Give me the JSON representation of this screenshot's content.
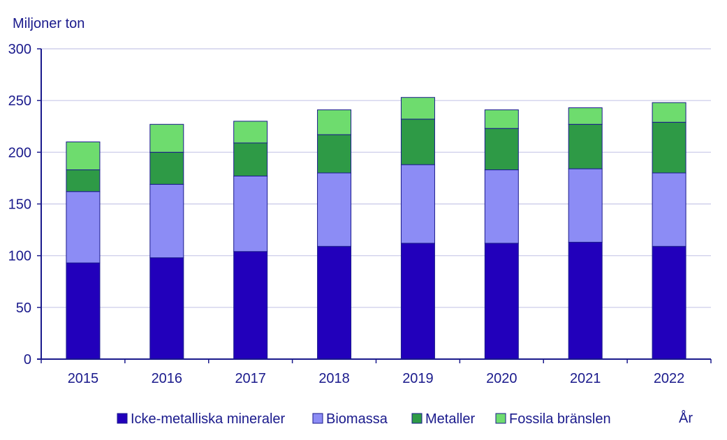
{
  "chart_data": {
    "type": "bar",
    "stacked": true,
    "title": "",
    "ylabel": "Miljoner ton",
    "xlabel": "År",
    "ylim": [
      0,
      300
    ],
    "yticks": [
      0,
      50,
      100,
      150,
      200,
      250,
      300
    ],
    "grid": true,
    "legend_position": "bottom",
    "categories": [
      "2015",
      "2016",
      "2017",
      "2018",
      "2019",
      "2020",
      "2021",
      "2022"
    ],
    "series": [
      {
        "name": "Icke-metalliska mineraler",
        "color": "#2200bb",
        "values": [
          93,
          98,
          104,
          109,
          112,
          112,
          113,
          109
        ]
      },
      {
        "name": "Biomassa",
        "color": "#8c8cf5",
        "values": [
          69,
          71,
          73,
          71,
          76,
          71,
          71,
          71
        ]
      },
      {
        "name": "Metaller",
        "color": "#2e9a46",
        "values": [
          21,
          31,
          32,
          37,
          44,
          40,
          43,
          49
        ]
      },
      {
        "name": "Fossila bränslen",
        "color": "#6edc6e",
        "values": [
          27,
          27,
          21,
          24,
          21,
          18,
          16,
          19
        ]
      }
    ],
    "axis_color": "#1a1a8c",
    "grid_color": "#c8c8e8"
  }
}
